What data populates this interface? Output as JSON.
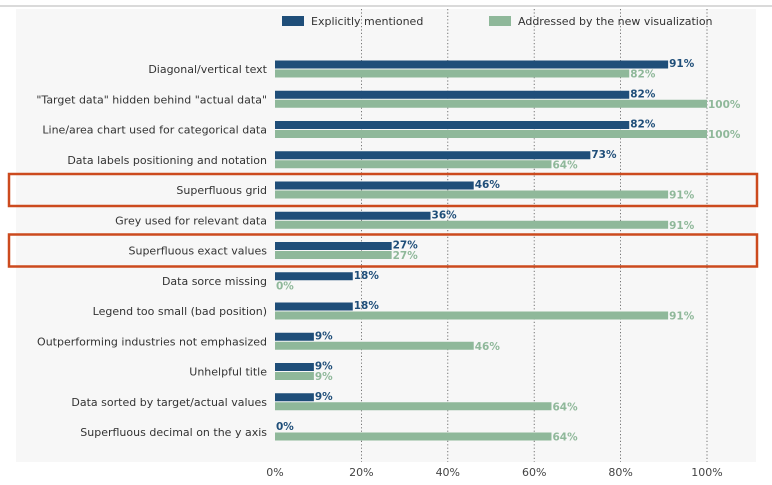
{
  "chart_data": {
    "type": "bar",
    "orientation": "horizontal",
    "categories": [
      "Diagonal/vertical text",
      "\"Target data\" hidden behind \"actual data\"",
      "Line/area chart used for categorical data",
      "Data labels positioning and notation",
      "Superfluous grid",
      "Grey used for relevant data",
      "Superfluous exact values",
      "Data sorce missing",
      "Legend too small (bad position)",
      "Outperforming industries not emphasized",
      "Unhelpful title",
      "Data sorted by target/actual values",
      "Superfluous decimal on the y axis"
    ],
    "series": [
      {
        "name": "Explicitly mentioned",
        "color": "#1f4e79",
        "values": [
          91,
          82,
          82,
          73,
          46,
          36,
          27,
          18,
          18,
          9,
          9,
          9,
          0
        ],
        "labels": [
          "91%",
          "82%",
          "82%",
          "73%",
          "46%",
          "36%",
          "27%",
          "18%",
          "18%",
          "9%",
          "9%",
          "9%",
          "0%"
        ]
      },
      {
        "name": "Addressed by the new visualization",
        "color": "#8fb89a",
        "values": [
          82,
          100,
          100,
          64,
          91,
          91,
          27,
          0,
          91,
          46,
          9,
          64,
          64
        ],
        "labels": [
          "82%",
          "100%",
          "100%",
          "64%",
          "91%",
          "91%",
          "27%",
          "0%",
          "91%",
          "46%",
          "9%",
          "64%",
          "64%"
        ]
      }
    ],
    "xlim": [
      0,
      100
    ],
    "xticks": [
      "0%",
      "20%",
      "40%",
      "60%",
      "80%",
      "100%"
    ],
    "xtick_values": [
      0,
      20,
      40,
      60,
      80,
      100
    ],
    "grid": "vertical dotted",
    "legend_position": "top",
    "highlighted_categories": [
      "Superfluous grid",
      "Superfluous exact values"
    ],
    "highlight_color": "#cc4a1e",
    "background_color": "#f7f7f7"
  }
}
